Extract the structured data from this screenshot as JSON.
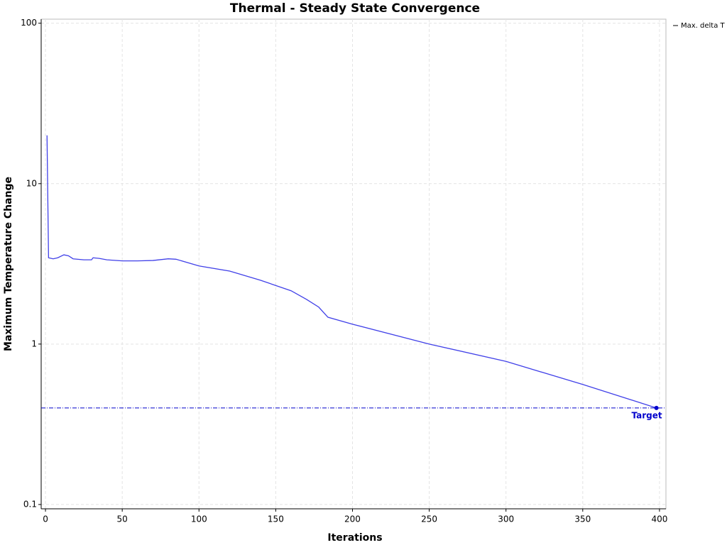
{
  "chart_data": {
    "type": "line",
    "title": "Thermal - Steady State Convergence",
    "x_label": "Iterations",
    "y_label": "Maximum Temperature Change",
    "log_scale_y": true,
    "grid": true,
    "legend": "right",
    "series": [
      {
        "name": "Max. delta T",
        "color": "#4040e8",
        "x": [
          1,
          2,
          5,
          8,
          12,
          15,
          18,
          25,
          30,
          31,
          35,
          40,
          50,
          60,
          70,
          80,
          85,
          100,
          120,
          140,
          160,
          170,
          178,
          184,
          200,
          250,
          300,
          350,
          398
        ],
        "values": [
          20,
          3.45,
          3.4,
          3.45,
          3.6,
          3.55,
          3.4,
          3.35,
          3.35,
          3.45,
          3.42,
          3.35,
          3.3,
          3.3,
          3.32,
          3.4,
          3.38,
          3.07,
          2.85,
          2.5,
          2.15,
          1.9,
          1.7,
          1.47,
          1.33,
          1.0,
          0.78,
          0.56,
          0.4
        ]
      }
    ],
    "reference_line": {
      "label": "Target",
      "value": 0.4,
      "x": 398,
      "color": "#0000cc"
    },
    "xlim": [
      -2.8,
      404.2
    ],
    "xticks": [
      0,
      50,
      100,
      150,
      200,
      250,
      300,
      350,
      400
    ],
    "ylim": [
      0.094,
      106
    ],
    "yticks": [
      0.1,
      1,
      10,
      100
    ]
  }
}
